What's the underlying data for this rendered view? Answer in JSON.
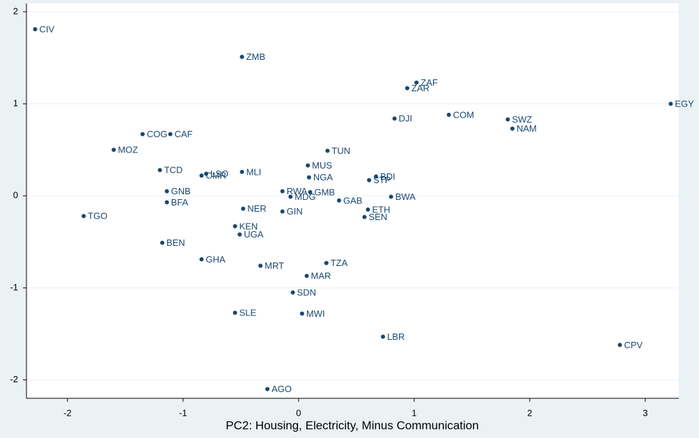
{
  "chart_data": {
    "type": "scatter",
    "xlabel": "PC2: Housing, Electricity, Minus Communication",
    "labels": [
      "CIV",
      "ZMB",
      "ZAF",
      "ZAR",
      "EGY",
      "DJI",
      "COM",
      "SWZ",
      "NAM",
      "COG",
      "CAF",
      "MOZ",
      "TUN",
      "MUS",
      "TCD",
      "LSO",
      "CMR",
      "MLI",
      "NGA",
      "BDI",
      "STP",
      "GNB",
      "RWA",
      "GMB",
      "MDG",
      "BWA",
      "GAB",
      "BFA",
      "NER",
      "GIN",
      "ETH",
      "SEN",
      "TGO",
      "KEN",
      "UGA",
      "BEN",
      "GHA",
      "MRT",
      "TZA",
      "MAR",
      "SDN",
      "SLE",
      "MWI",
      "LBR",
      "CPV",
      "AGO"
    ],
    "x": [
      -2.28,
      -0.49,
      1.02,
      0.94,
      3.22,
      0.83,
      1.3,
      1.81,
      1.85,
      -1.35,
      -1.11,
      -1.6,
      0.25,
      0.08,
      -1.2,
      -0.8,
      -0.84,
      -0.49,
      0.09,
      0.67,
      0.61,
      -1.14,
      -0.14,
      0.1,
      -0.07,
      0.8,
      0.35,
      -1.14,
      -0.48,
      -0.14,
      0.6,
      0.57,
      -1.86,
      -0.55,
      -0.51,
      -1.18,
      -0.84,
      -0.33,
      0.24,
      0.07,
      -0.05,
      -0.55,
      0.03,
      0.73,
      2.78,
      -0.27
    ],
    "values": [
      1.81,
      1.51,
      1.23,
      1.17,
      1.0,
      0.84,
      0.88,
      0.83,
      0.73,
      0.67,
      0.67,
      0.5,
      0.49,
      0.33,
      0.28,
      0.24,
      0.22,
      0.26,
      0.2,
      0.21,
      0.17,
      0.05,
      0.05,
      0.04,
      -0.01,
      -0.01,
      -0.05,
      -0.07,
      -0.14,
      -0.17,
      -0.15,
      -0.23,
      -0.22,
      -0.33,
      -0.42,
      -0.51,
      -0.69,
      -0.76,
      -0.73,
      -0.87,
      -1.05,
      -1.27,
      -1.28,
      -1.53,
      -1.62,
      -2.1
    ],
    "color": "#1a476f",
    "xlim": [
      -2.355,
      3.29
    ],
    "ylim": [
      -2.2,
      2.09
    ],
    "xticks": [
      -2,
      -1,
      0,
      1,
      2,
      3
    ],
    "yticks": [
      -2,
      -1,
      0,
      1,
      2
    ],
    "grid": true
  }
}
